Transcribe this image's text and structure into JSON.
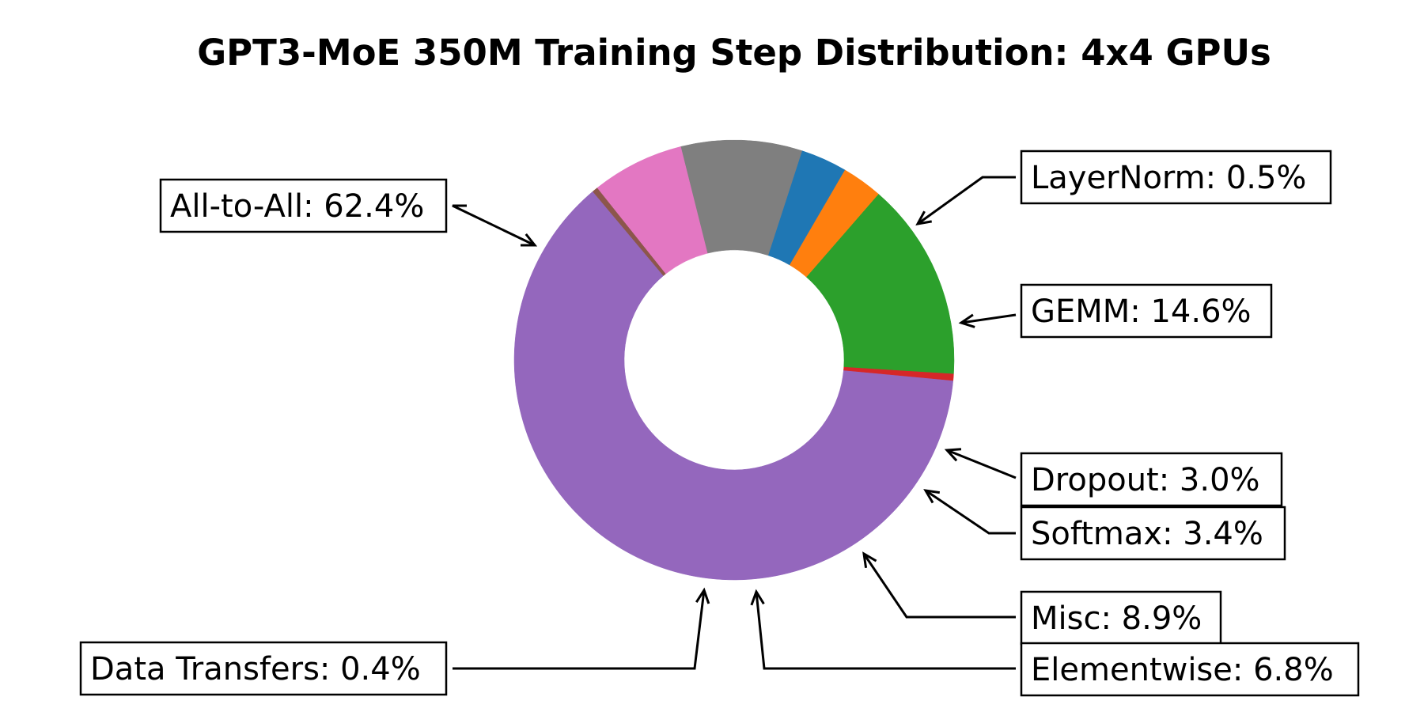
{
  "chart_data": {
    "type": "pie",
    "title": "GPT3-MoE 350M Training Step Distribution: 4x4 GPUs",
    "donut": true,
    "slices": [
      {
        "name": "All-to-All",
        "value": 62.4,
        "label": "All-to-All: 62.4%",
        "color": "#9467bd"
      },
      {
        "name": "LayerNorm",
        "value": 0.5,
        "label": "LayerNorm: 0.5%",
        "color": "#d62728"
      },
      {
        "name": "GEMM",
        "value": 14.6,
        "label": "GEMM: 14.6%",
        "color": "#2ca02c"
      },
      {
        "name": "Dropout",
        "value": 3.0,
        "label": "Dropout: 3.0%",
        "color": "#ff7f0e"
      },
      {
        "name": "Softmax",
        "value": 3.4,
        "label": "Softmax: 3.4%",
        "color": "#1f77b4"
      },
      {
        "name": "Misc",
        "value": 8.9,
        "label": "Misc: 8.9%",
        "color": "#7f7f7f"
      },
      {
        "name": "Elementwise",
        "value": 6.8,
        "label": "Elementwise: 6.8%",
        "color": "#e377c2"
      },
      {
        "name": "Data Transfers",
        "value": 0.4,
        "label": "Data Transfers: 0.4%",
        "color": "#8c564b"
      }
    ]
  }
}
